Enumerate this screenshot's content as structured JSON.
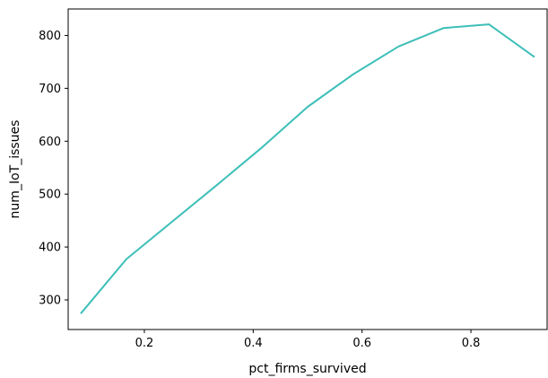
{
  "chart_data": {
    "type": "line",
    "title": "",
    "xlabel": "pct_firms_survived",
    "ylabel": "num_IoT_issues",
    "xlim": [
      0.06,
      0.94
    ],
    "ylim": [
      244,
      850
    ],
    "x_ticks": [
      0.2,
      0.4,
      0.6,
      0.8
    ],
    "x_tick_labels": [
      "0.2",
      "0.4",
      "0.6",
      "0.8"
    ],
    "y_ticks": [
      300,
      400,
      500,
      600,
      700,
      800
    ],
    "y_tick_labels": [
      "300",
      "400",
      "500",
      "600",
      "700",
      "800"
    ],
    "grid": false,
    "legend": "none",
    "series": [
      {
        "color": "#3dbfb8",
        "x": [
          0.083,
          0.167,
          0.25,
          0.333,
          0.417,
          0.5,
          0.583,
          0.667,
          0.75,
          0.833,
          0.917
        ],
        "y": [
          274,
          377,
          447,
          517,
          589,
          665,
          726,
          779,
          814,
          821,
          759
        ]
      }
    ]
  }
}
